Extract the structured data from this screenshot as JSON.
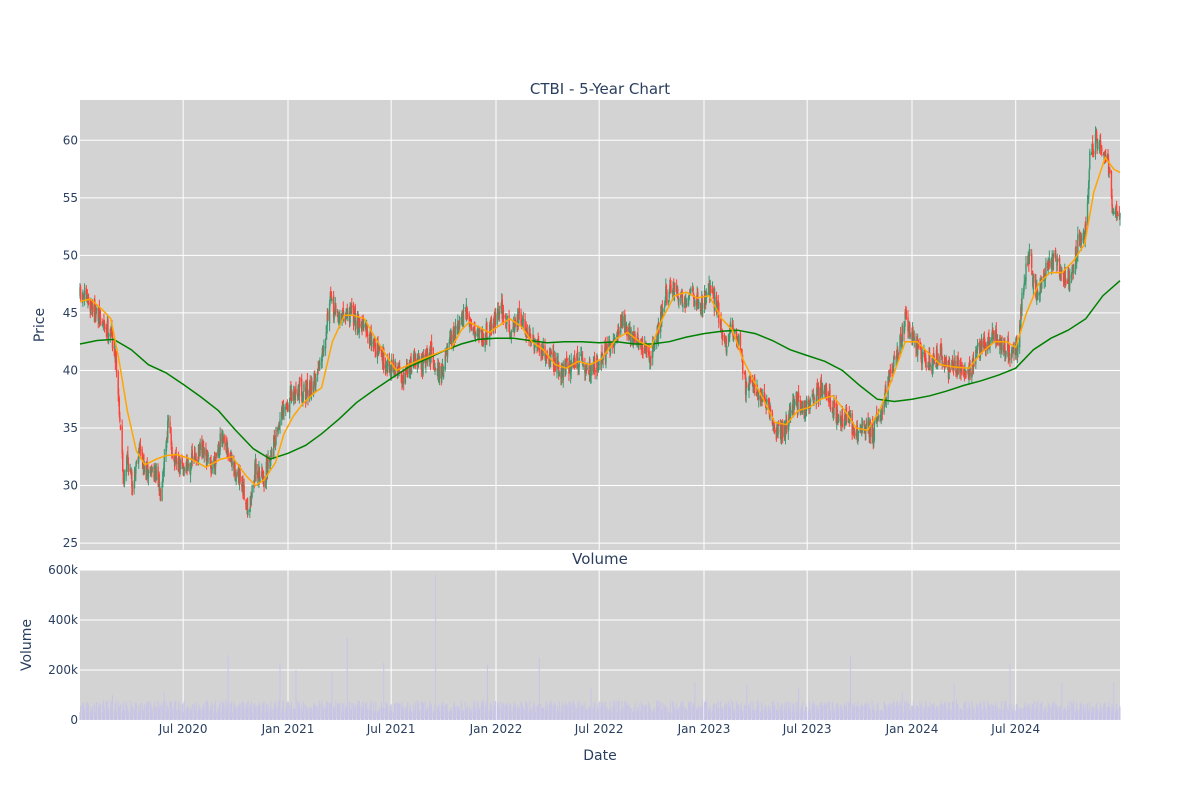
{
  "chart_data": [
    {
      "type": "candlestick",
      "title": "CTBI - 5-Year Chart",
      "ylabel": "Price",
      "ylim": [
        24.4,
        63.5
      ],
      "yticks": [
        25,
        30,
        35,
        40,
        45,
        50,
        55,
        60
      ],
      "grid": true,
      "legend": "none",
      "colors": {
        "increasing": "#3d9970",
        "decreasing": "#ff4136",
        "ma_short": "#ffa500",
        "ma_long": "#008000",
        "plot_bg": "#d3d3d3",
        "grid": "#ffffff"
      },
      "close_path": [
        [
          "2020-01-02",
          46.5
        ],
        [
          "2020-01-20",
          45.8
        ],
        [
          "2020-02-10",
          44.0
        ],
        [
          "2020-02-25",
          43.5
        ],
        [
          "2020-03-05",
          41.0
        ],
        [
          "2020-03-12",
          36.0
        ],
        [
          "2020-03-18",
          30.5
        ],
        [
          "2020-03-25",
          32.5
        ],
        [
          "2020-04-03",
          30.0
        ],
        [
          "2020-04-15",
          33.5
        ],
        [
          "2020-04-25",
          31.0
        ],
        [
          "2020-05-10",
          31.5
        ],
        [
          "2020-05-22",
          29.5
        ],
        [
          "2020-06-05",
          35.5
        ],
        [
          "2020-06-15",
          32.0
        ],
        [
          "2020-06-30",
          31.5
        ],
        [
          "2020-07-15",
          32.0
        ],
        [
          "2020-08-01",
          33.0
        ],
        [
          "2020-08-20",
          31.5
        ],
        [
          "2020-09-05",
          34.0
        ],
        [
          "2020-09-20",
          32.5
        ],
        [
          "2020-10-10",
          30.0
        ],
        [
          "2020-10-25",
          28.0
        ],
        [
          "2020-11-05",
          31.5
        ],
        [
          "2020-11-20",
          30.5
        ],
        [
          "2020-12-05",
          33.5
        ],
        [
          "2020-12-20",
          36.0
        ],
        [
          "2021-01-05",
          37.5
        ],
        [
          "2021-01-20",
          38.5
        ],
        [
          "2021-02-05",
          38.0
        ],
        [
          "2021-02-20",
          39.5
        ],
        [
          "2021-03-05",
          42.5
        ],
        [
          "2021-03-15",
          46.0
        ],
        [
          "2021-04-01",
          44.5
        ],
        [
          "2021-04-20",
          45.0
        ],
        [
          "2021-05-10",
          44.0
        ],
        [
          "2021-05-25",
          43.0
        ],
        [
          "2021-06-10",
          41.5
        ],
        [
          "2021-06-25",
          40.5
        ],
        [
          "2021-07-10",
          40.0
        ],
        [
          "2021-07-25",
          39.5
        ],
        [
          "2021-08-10",
          41.0
        ],
        [
          "2021-08-25",
          40.5
        ],
        [
          "2021-09-10",
          41.5
        ],
        [
          "2021-09-25",
          39.5
        ],
        [
          "2021-10-10",
          42.0
        ],
        [
          "2021-10-25",
          43.5
        ],
        [
          "2021-11-10",
          45.0
        ],
        [
          "2021-11-25",
          43.5
        ],
        [
          "2021-12-10",
          43.0
        ],
        [
          "2021-12-25",
          44.0
        ],
        [
          "2022-01-10",
          45.5
        ],
        [
          "2022-01-25",
          43.5
        ],
        [
          "2022-02-10",
          44.5
        ],
        [
          "2022-02-25",
          43.5
        ],
        [
          "2022-03-10",
          42.0
        ],
        [
          "2022-03-25",
          41.5
        ],
        [
          "2022-04-10",
          41.0
        ],
        [
          "2022-04-25",
          40.0
        ],
        [
          "2022-05-10",
          40.5
        ],
        [
          "2022-05-25",
          41.0
        ],
        [
          "2022-06-10",
          40.0
        ],
        [
          "2022-06-25",
          40.5
        ],
        [
          "2022-07-10",
          41.5
        ],
        [
          "2022-07-25",
          42.0
        ],
        [
          "2022-08-10",
          44.5
        ],
        [
          "2022-08-25",
          43.0
        ],
        [
          "2022-09-10",
          42.5
        ],
        [
          "2022-09-25",
          41.0
        ],
        [
          "2022-10-10",
          43.0
        ],
        [
          "2022-10-25",
          46.5
        ],
        [
          "2022-11-10",
          47.0
        ],
        [
          "2022-11-25",
          46.0
        ],
        [
          "2022-12-10",
          47.0
        ],
        [
          "2022-12-25",
          45.5
        ],
        [
          "2023-01-10",
          47.0
        ],
        [
          "2023-01-25",
          45.5
        ],
        [
          "2023-02-05",
          42.0
        ],
        [
          "2023-02-20",
          43.5
        ],
        [
          "2023-03-05",
          42.5
        ],
        [
          "2023-03-15",
          38.5
        ],
        [
          "2023-03-25",
          39.5
        ],
        [
          "2023-04-10",
          37.5
        ],
        [
          "2023-04-25",
          36.5
        ],
        [
          "2023-05-10",
          34.5
        ],
        [
          "2023-05-25",
          35.0
        ],
        [
          "2023-06-10",
          37.5
        ],
        [
          "2023-06-25",
          36.5
        ],
        [
          "2023-07-10",
          37.5
        ],
        [
          "2023-07-25",
          38.5
        ],
        [
          "2023-08-10",
          37.5
        ],
        [
          "2023-08-25",
          35.5
        ],
        [
          "2023-09-10",
          36.0
        ],
        [
          "2023-09-25",
          34.5
        ],
        [
          "2023-10-10",
          35.0
        ],
        [
          "2023-10-25",
          34.5
        ],
        [
          "2023-11-10",
          37.0
        ],
        [
          "2023-11-25",
          40.0
        ],
        [
          "2023-12-10",
          42.0
        ],
        [
          "2023-12-20",
          44.5
        ],
        [
          "2024-01-05",
          42.5
        ],
        [
          "2024-01-20",
          41.0
        ],
        [
          "2024-02-05",
          40.5
        ],
        [
          "2024-02-20",
          41.5
        ],
        [
          "2024-03-05",
          40.0
        ],
        [
          "2024-03-20",
          40.5
        ],
        [
          "2024-04-10",
          40.0
        ],
        [
          "2024-04-25",
          41.5
        ],
        [
          "2024-05-10",
          42.5
        ],
        [
          "2024-05-25",
          43.0
        ],
        [
          "2024-06-10",
          42.0
        ],
        [
          "2024-06-25",
          41.5
        ],
        [
          "2024-07-05",
          42.5
        ],
        [
          "2024-07-15",
          47.5
        ],
        [
          "2024-07-25",
          50.0
        ],
        [
          "2024-08-05",
          46.5
        ],
        [
          "2024-08-20",
          48.5
        ],
        [
          "2024-09-05",
          49.5
        ],
        [
          "2024-09-20",
          48.5
        ],
        [
          "2024-10-05",
          48.0
        ],
        [
          "2024-10-20",
          51.5
        ],
        [
          "2024-11-01",
          52.0
        ],
        [
          "2024-11-08",
          58.5
        ],
        [
          "2024-11-20",
          60.0
        ],
        [
          "2024-12-01",
          59.0
        ],
        [
          "2024-12-10",
          58.0
        ],
        [
          "2024-12-18",
          54.0
        ],
        [
          "2024-12-31",
          53.0
        ]
      ],
      "ma_short": [
        [
          "2020-01-02",
          46.0
        ],
        [
          "2020-01-20",
          46.2
        ],
        [
          "2020-02-10",
          45.3
        ],
        [
          "2020-02-25",
          44.5
        ],
        [
          "2020-03-10",
          41.0
        ],
        [
          "2020-03-25",
          36.5
        ],
        [
          "2020-04-10",
          33.0
        ],
        [
          "2020-04-25",
          31.8
        ],
        [
          "2020-05-15",
          32.3
        ],
        [
          "2020-06-01",
          32.6
        ],
        [
          "2020-06-20",
          32.7
        ],
        [
          "2020-07-15",
          32.3
        ],
        [
          "2020-08-10",
          31.6
        ],
        [
          "2020-09-05",
          32.3
        ],
        [
          "2020-09-25",
          32.5
        ],
        [
          "2020-10-20",
          30.8
        ],
        [
          "2020-11-05",
          30.0
        ],
        [
          "2020-11-20",
          30.5
        ],
        [
          "2020-12-10",
          32.0
        ],
        [
          "2020-12-25",
          34.5
        ],
        [
          "2021-01-10",
          36.0
        ],
        [
          "2021-01-25",
          37.0
        ],
        [
          "2021-02-15",
          38.0
        ],
        [
          "2021-03-01",
          38.5
        ],
        [
          "2021-03-20",
          42.5
        ],
        [
          "2021-04-10",
          44.8
        ],
        [
          "2021-04-25",
          44.8
        ],
        [
          "2021-05-15",
          44.5
        ],
        [
          "2021-06-01",
          43.0
        ],
        [
          "2021-06-20",
          41.5
        ],
        [
          "2021-07-10",
          40.0
        ],
        [
          "2021-08-01",
          40.5
        ],
        [
          "2021-08-25",
          41.0
        ],
        [
          "2021-09-20",
          41.5
        ],
        [
          "2021-10-15",
          42.0
        ],
        [
          "2021-11-01",
          43.5
        ],
        [
          "2021-11-15",
          44.2
        ],
        [
          "2021-12-05",
          43.7
        ],
        [
          "2021-12-20",
          43.3
        ],
        [
          "2022-01-10",
          44.0
        ],
        [
          "2022-01-25",
          44.5
        ],
        [
          "2022-02-15",
          43.8
        ],
        [
          "2022-03-05",
          42.5
        ],
        [
          "2022-03-25",
          41.8
        ],
        [
          "2022-04-15",
          40.5
        ],
        [
          "2022-05-05",
          40.2
        ],
        [
          "2022-05-25",
          40.8
        ],
        [
          "2022-06-15",
          40.5
        ],
        [
          "2022-07-05",
          41.0
        ],
        [
          "2022-08-01",
          42.8
        ],
        [
          "2022-08-20",
          43.3
        ],
        [
          "2022-09-10",
          42.5
        ],
        [
          "2022-09-30",
          42.0
        ],
        [
          "2022-10-20",
          44.5
        ],
        [
          "2022-11-10",
          46.5
        ],
        [
          "2022-12-01",
          46.8
        ],
        [
          "2022-12-20",
          46.3
        ],
        [
          "2023-01-10",
          46.5
        ],
        [
          "2023-02-01",
          44.5
        ],
        [
          "2023-02-20",
          43.5
        ],
        [
          "2023-03-10",
          41.0
        ],
        [
          "2023-03-25",
          39.5
        ],
        [
          "2023-04-15",
          37.5
        ],
        [
          "2023-05-05",
          35.5
        ],
        [
          "2023-05-25",
          35.3
        ],
        [
          "2023-06-15",
          36.5
        ],
        [
          "2023-07-05",
          36.8
        ],
        [
          "2023-07-25",
          37.5
        ],
        [
          "2023-08-15",
          37.8
        ],
        [
          "2023-09-05",
          36.5
        ],
        [
          "2023-09-25",
          35.0
        ],
        [
          "2023-10-15",
          34.8
        ],
        [
          "2023-11-05",
          36.5
        ],
        [
          "2023-11-25",
          39.0
        ],
        [
          "2023-12-20",
          42.5
        ],
        [
          "2024-01-10",
          42.5
        ],
        [
          "2024-01-30",
          41.5
        ],
        [
          "2024-02-20",
          40.5
        ],
        [
          "2024-03-15",
          40.3
        ],
        [
          "2024-04-10",
          40.2
        ],
        [
          "2024-05-01",
          41.5
        ],
        [
          "2024-05-25",
          42.5
        ],
        [
          "2024-06-15",
          42.5
        ],
        [
          "2024-07-01",
          42.0
        ],
        [
          "2024-07-20",
          45.0
        ],
        [
          "2024-08-10",
          47.5
        ],
        [
          "2024-08-30",
          48.5
        ],
        [
          "2024-09-20",
          48.5
        ],
        [
          "2024-10-10",
          49.5
        ],
        [
          "2024-10-30",
          51.0
        ],
        [
          "2024-11-15",
          55.5
        ],
        [
          "2024-12-05",
          58.5
        ],
        [
          "2024-12-20",
          57.5
        ],
        [
          "2024-12-31",
          57.2
        ]
      ],
      "ma_long": [
        [
          "2020-01-02",
          42.3
        ],
        [
          "2020-02-01",
          42.6
        ],
        [
          "2020-03-01",
          42.7
        ],
        [
          "2020-04-01",
          41.8
        ],
        [
          "2020-05-01",
          40.5
        ],
        [
          "2020-06-01",
          39.8
        ],
        [
          "2020-07-01",
          38.8
        ],
        [
          "2020-08-01",
          37.7
        ],
        [
          "2020-09-01",
          36.5
        ],
        [
          "2020-10-01",
          34.8
        ],
        [
          "2020-11-01",
          33.2
        ],
        [
          "2020-12-01",
          32.3
        ],
        [
          "2021-01-01",
          32.8
        ],
        [
          "2021-02-01",
          33.5
        ],
        [
          "2021-03-01",
          34.5
        ],
        [
          "2021-04-01",
          35.8
        ],
        [
          "2021-05-01",
          37.2
        ],
        [
          "2021-06-01",
          38.3
        ],
        [
          "2021-07-01",
          39.3
        ],
        [
          "2021-08-01",
          40.3
        ],
        [
          "2021-09-01",
          41.0
        ],
        [
          "2021-10-01",
          41.7
        ],
        [
          "2021-11-01",
          42.3
        ],
        [
          "2021-12-01",
          42.7
        ],
        [
          "2022-01-01",
          42.8
        ],
        [
          "2022-02-01",
          42.8
        ],
        [
          "2022-03-01",
          42.6
        ],
        [
          "2022-04-01",
          42.4
        ],
        [
          "2022-05-01",
          42.5
        ],
        [
          "2022-06-01",
          42.5
        ],
        [
          "2022-07-01",
          42.4
        ],
        [
          "2022-08-01",
          42.5
        ],
        [
          "2022-09-01",
          42.3
        ],
        [
          "2022-10-01",
          42.3
        ],
        [
          "2022-11-01",
          42.5
        ],
        [
          "2022-12-01",
          42.9
        ],
        [
          "2023-01-01",
          43.2
        ],
        [
          "2023-02-01",
          43.4
        ],
        [
          "2023-03-01",
          43.5
        ],
        [
          "2023-04-01",
          43.2
        ],
        [
          "2023-05-01",
          42.6
        ],
        [
          "2023-06-01",
          41.8
        ],
        [
          "2023-07-01",
          41.3
        ],
        [
          "2023-08-01",
          40.8
        ],
        [
          "2023-09-01",
          40.0
        ],
        [
          "2023-10-01",
          38.7
        ],
        [
          "2023-11-01",
          37.5
        ],
        [
          "2023-12-01",
          37.3
        ],
        [
          "2024-01-01",
          37.5
        ],
        [
          "2024-02-01",
          37.8
        ],
        [
          "2024-03-01",
          38.2
        ],
        [
          "2024-04-01",
          38.7
        ],
        [
          "2024-05-01",
          39.1
        ],
        [
          "2024-06-01",
          39.6
        ],
        [
          "2024-07-01",
          40.2
        ],
        [
          "2024-08-01",
          41.8
        ],
        [
          "2024-09-01",
          42.8
        ],
        [
          "2024-10-01",
          43.5
        ],
        [
          "2024-11-01",
          44.5
        ],
        [
          "2024-12-01",
          46.5
        ],
        [
          "2024-12-31",
          47.8
        ]
      ]
    },
    {
      "type": "bar",
      "title": "Volume",
      "ylabel": "Volume",
      "xlabel": "Date",
      "ylim": [
        0,
        600000
      ],
      "yticks": [
        0,
        200000,
        400000,
        600000
      ],
      "ytick_labels": [
        "0",
        "200k",
        "400k",
        "600k"
      ],
      "xticks": [
        "2020-07-01",
        "2021-01-01",
        "2021-07-01",
        "2022-01-01",
        "2022-07-01",
        "2023-01-01",
        "2023-07-01",
        "2024-01-01",
        "2024-07-01"
      ],
      "xtick_labels": [
        "Jul 2020",
        "Jan 2021",
        "Jul 2021",
        "Jan 2022",
        "Jul 2022",
        "Jan 2023",
        "Jul 2023",
        "Jan 2024",
        "Jul 2024"
      ],
      "x_range": [
        "2020-01-02",
        "2024-12-31"
      ],
      "color": "#c8c4e6",
      "typical_volume_range": [
        30000,
        100000
      ],
      "spikes": [
        [
          "2020-02-28",
          100000
        ],
        [
          "2020-05-29",
          110000
        ],
        [
          "2020-09-18",
          260000
        ],
        [
          "2020-12-18",
          230000
        ],
        [
          "2021-01-15",
          200000
        ],
        [
          "2021-03-19",
          190000
        ],
        [
          "2021-04-15",
          330000
        ],
        [
          "2021-06-18",
          230000
        ],
        [
          "2021-09-17",
          580000
        ],
        [
          "2021-12-17",
          220000
        ],
        [
          "2022-03-18",
          250000
        ],
        [
          "2022-06-17",
          130000
        ],
        [
          "2022-12-16",
          150000
        ],
        [
          "2023-03-17",
          140000
        ],
        [
          "2023-06-16",
          130000
        ],
        [
          "2023-09-15",
          260000
        ],
        [
          "2023-12-15",
          110000
        ],
        [
          "2024-03-15",
          150000
        ],
        [
          "2024-06-21",
          220000
        ],
        [
          "2024-09-20",
          150000
        ],
        [
          "2024-12-20",
          150000
        ]
      ]
    }
  ]
}
